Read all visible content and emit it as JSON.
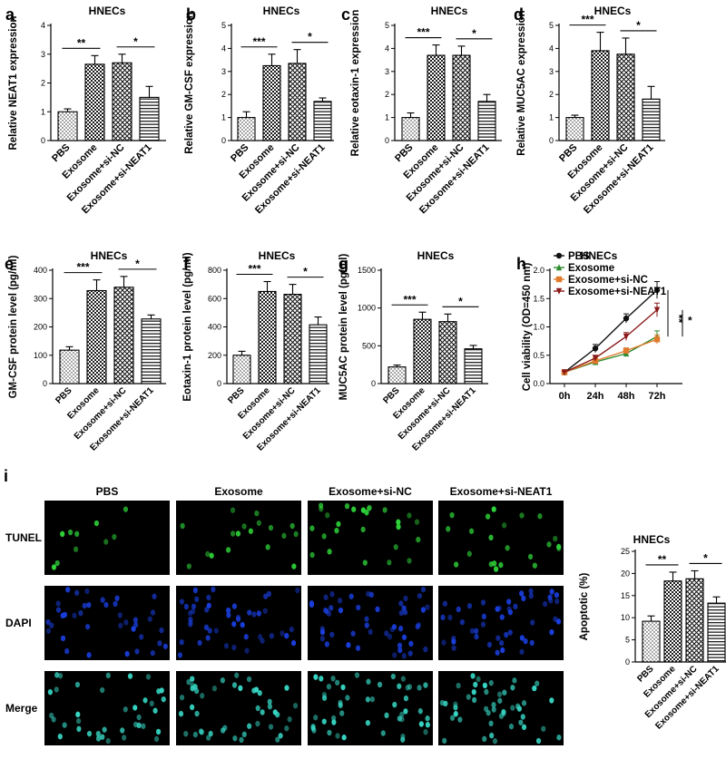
{
  "figure": {
    "micrograph": {
      "panel_letter": "i",
      "columns": [
        "PBS",
        "Exosome",
        "Exosome+si-NC",
        "Exosome+si-NEAT1"
      ],
      "rows": [
        "TUNEL",
        "DAPI",
        "Merge"
      ],
      "colors": {
        "tunel": "#2fd63a",
        "dapi": "#1a3fe0",
        "merge": "#37d7c4"
      }
    }
  },
  "chart_data": [
    {
      "id": "a",
      "panel_letter": "a",
      "type": "bar",
      "title": "HNECs",
      "ylabel": "Relative NEAT1 expression",
      "ylim": [
        0,
        4
      ],
      "yticks": [
        0,
        1,
        2,
        3,
        4
      ],
      "categories": [
        "PBS",
        "Exosome",
        "Exosome+si-NC",
        "Exosome+si-NEAT1"
      ],
      "values": [
        1.0,
        2.65,
        2.7,
        1.5
      ],
      "errors": [
        0.1,
        0.3,
        0.3,
        0.38
      ],
      "annotations": [
        {
          "from": 0,
          "to": 1,
          "label": "**"
        },
        {
          "from": 2,
          "to": 3,
          "label": "*"
        }
      ]
    },
    {
      "id": "b",
      "panel_letter": "b",
      "type": "bar",
      "title": "HNECs",
      "ylabel": "Relative GM-CSF expression",
      "ylim": [
        0,
        5
      ],
      "yticks": [
        0,
        1,
        2,
        3,
        4,
        5
      ],
      "categories": [
        "PBS",
        "Exosome",
        "Exosome+si-NC",
        "Exosome+si-NEAT1"
      ],
      "values": [
        1.0,
        3.25,
        3.35,
        1.7
      ],
      "errors": [
        0.25,
        0.5,
        0.6,
        0.15
      ],
      "annotations": [
        {
          "from": 0,
          "to": 1,
          "label": "***"
        },
        {
          "from": 2,
          "to": 3,
          "label": "*"
        }
      ]
    },
    {
      "id": "c",
      "panel_letter": "c",
      "type": "bar",
      "title": "HNECs",
      "ylabel": "Relative eotaxin-1 expression",
      "ylim": [
        0,
        5
      ],
      "yticks": [
        0,
        1,
        2,
        3,
        4,
        5
      ],
      "categories": [
        "PBS",
        "Exosome",
        "Exosome+si-NC",
        "Exosome+si-NEAT1"
      ],
      "values": [
        1.0,
        3.7,
        3.7,
        1.7
      ],
      "errors": [
        0.2,
        0.45,
        0.4,
        0.3
      ],
      "annotations": [
        {
          "from": 0,
          "to": 1,
          "label": "***"
        },
        {
          "from": 2,
          "to": 3,
          "label": "*"
        }
      ]
    },
    {
      "id": "d",
      "panel_letter": "d",
      "type": "bar",
      "title": "HNECs",
      "ylabel": "Relative MUC5AC expression",
      "ylim": [
        0,
        5
      ],
      "yticks": [
        0,
        1,
        2,
        3,
        4,
        5
      ],
      "categories": [
        "PBS",
        "Exosome",
        "Exosome+si-NC",
        "Exosome+si-NEAT1"
      ],
      "values": [
        1.0,
        3.9,
        3.75,
        1.8
      ],
      "errors": [
        0.1,
        0.8,
        0.7,
        0.55
      ],
      "annotations": [
        {
          "from": 0,
          "to": 1,
          "label": "***"
        },
        {
          "from": 2,
          "to": 3,
          "label": "*"
        }
      ]
    },
    {
      "id": "e",
      "panel_letter": "e",
      "type": "bar",
      "title": "HNECs",
      "ylabel": "GM-CSF protein level (pg/ml)",
      "ylim": [
        0,
        400
      ],
      "yticks": [
        0,
        100,
        200,
        300,
        400
      ],
      "categories": [
        "PBS",
        "Exosome",
        "Exosome+si-NC",
        "Exosome+si-NEAT1"
      ],
      "values": [
        118,
        328,
        340,
        228
      ],
      "errors": [
        12,
        38,
        38,
        14
      ],
      "annotations": [
        {
          "from": 0,
          "to": 1,
          "label": "***"
        },
        {
          "from": 2,
          "to": 3,
          "label": "*"
        }
      ]
    },
    {
      "id": "f",
      "panel_letter": "f",
      "type": "bar",
      "title": "HNECs",
      "ylabel": "Eotaxin-1 protein level (pg/ml)",
      "ylim": [
        0,
        800
      ],
      "yticks": [
        0,
        200,
        400,
        600,
        800
      ],
      "categories": [
        "PBS",
        "Exosome",
        "Exosome+si-NC",
        "Exosome+si-NEAT1"
      ],
      "values": [
        200,
        650,
        630,
        415
      ],
      "errors": [
        28,
        70,
        70,
        55
      ],
      "annotations": [
        {
          "from": 0,
          "to": 1,
          "label": "***"
        },
        {
          "from": 2,
          "to": 3,
          "label": "*"
        }
      ]
    },
    {
      "id": "g",
      "panel_letter": "g",
      "type": "bar",
      "title": "HNECs",
      "ylabel": "MUC5AC protein level (pg/ml)",
      "ylim": [
        0,
        1500
      ],
      "yticks": [
        0,
        500,
        1000,
        1500
      ],
      "categories": [
        "PBS",
        "Exosome",
        "Exosome+si-NC",
        "Exosome+si-NEAT1"
      ],
      "values": [
        220,
        850,
        820,
        460
      ],
      "errors": [
        25,
        95,
        100,
        45
      ],
      "annotations": [
        {
          "from": 0,
          "to": 1,
          "label": "***"
        },
        {
          "from": 2,
          "to": 3,
          "label": "*"
        }
      ]
    },
    {
      "id": "h",
      "panel_letter": "h",
      "type": "line",
      "title": "HNECs",
      "ylabel": "Cell viability (OD=450 nm)",
      "ylim": [
        0,
        2.0
      ],
      "yticks": [
        0.0,
        0.5,
        1.0,
        1.5,
        2.0
      ],
      "x": [
        "0h",
        "24h",
        "48h",
        "72h"
      ],
      "legend_position": "top-left",
      "series": [
        {
          "name": "PBS",
          "color": "#111111",
          "marker": "circle",
          "values": [
            0.2,
            0.62,
            1.15,
            1.65
          ],
          "errors": [
            0.02,
            0.07,
            0.08,
            0.15
          ]
        },
        {
          "name": "Exosome",
          "color": "#2e8b2e",
          "marker": "triangle",
          "values": [
            0.2,
            0.38,
            0.53,
            0.83
          ],
          "errors": [
            0.02,
            0.05,
            0.05,
            0.1
          ]
        },
        {
          "name": "Exosome+si-NC",
          "color": "#e07a2c",
          "marker": "square",
          "values": [
            0.2,
            0.4,
            0.58,
            0.78
          ],
          "errors": [
            0.02,
            0.05,
            0.05,
            0.08
          ]
        },
        {
          "name": "Exosome+si-NEAT1",
          "color": "#8b1a1a",
          "marker": "triangle-down",
          "values": [
            0.2,
            0.45,
            0.83,
            1.3
          ],
          "errors": [
            0.02,
            0.05,
            0.07,
            0.12
          ]
        }
      ],
      "annotations": [
        {
          "label": "**"
        },
        {
          "label": "*"
        }
      ]
    },
    {
      "id": "i",
      "panel_letter": "",
      "type": "bar",
      "title": "HNECs",
      "ylabel": "Apoptotic (%)",
      "ylim": [
        0,
        25
      ],
      "yticks": [
        0,
        5,
        10,
        15,
        20,
        25
      ],
      "categories": [
        "PBS",
        "Exosome",
        "Exosome+si-NC",
        "Exosome+si-NEAT1"
      ],
      "values": [
        9.2,
        18.3,
        18.8,
        13.3
      ],
      "errors": [
        1.2,
        2.0,
        1.8,
        1.4
      ],
      "annotations": [
        {
          "from": 0,
          "to": 1,
          "label": "**"
        },
        {
          "from": 2,
          "to": 3,
          "label": "*"
        }
      ]
    }
  ]
}
